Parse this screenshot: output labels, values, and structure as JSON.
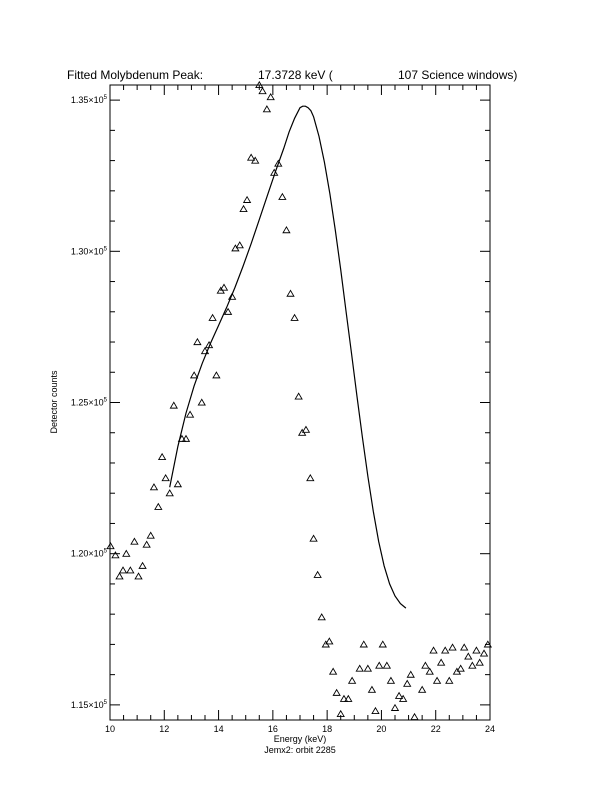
{
  "chart_data": {
    "type": "scatter",
    "title_parts": [
      "Fitted Molybdenum Peak:",
      "17.3728 keV (",
      "107 Science windows)"
    ],
    "xlabel": "Energy (keV)",
    "subtitle": "Jemx2: orbit 2285",
    "ylabel": "Detector counts",
    "xlim": [
      10,
      24
    ],
    "ylim": [
      114500,
      135500
    ],
    "x_ticks": [
      10,
      12,
      14,
      16,
      18,
      20,
      22,
      24
    ],
    "x_tick_labels": [
      "10",
      "12",
      "14",
      "16",
      "18",
      "20",
      "22",
      "24"
    ],
    "y_ticks": [
      115000,
      120000,
      125000,
      130000,
      135000
    ],
    "y_tick_labels": [
      {
        "mantissa": "1.15×10",
        "exp": "5"
      },
      {
        "mantissa": "1.20×10",
        "exp": "5"
      },
      {
        "mantissa": "1.25×10",
        "exp": "5"
      },
      {
        "mantissa": "1.30×10",
        "exp": "5"
      },
      {
        "mantissa": "1.35×10",
        "exp": "5"
      }
    ],
    "grid": false,
    "series": [
      {
        "marker": "triangle",
        "x": [
          10.02,
          10.2,
          10.35,
          10.48,
          10.6,
          10.75,
          10.9,
          11.05,
          11.2,
          11.35,
          11.5,
          11.62,
          11.78,
          11.92,
          12.05,
          12.2,
          12.35,
          12.5,
          12.65,
          12.8,
          12.95,
          13.1,
          13.22,
          13.38,
          13.5,
          13.65,
          13.78,
          13.92,
          14.08,
          14.2,
          14.35,
          14.5,
          14.62,
          14.78,
          14.92,
          15.05,
          15.2,
          15.35,
          15.5,
          15.62,
          15.78,
          15.92,
          16.05,
          16.2,
          16.35,
          16.5,
          16.65,
          16.8,
          16.95,
          17.08,
          17.22,
          17.38,
          17.5,
          17.65,
          17.8,
          17.95,
          18.08,
          18.22,
          18.35,
          18.5,
          18.62,
          18.78,
          18.92,
          19.05,
          19.2,
          19.35,
          19.5,
          19.65,
          19.78,
          19.92,
          20.05,
          20.2,
          20.35,
          20.5,
          20.65,
          20.8,
          20.95,
          21.08,
          21.22,
          21.35,
          21.5,
          21.62,
          21.78,
          21.92,
          22.05,
          22.2,
          22.35,
          22.5,
          22.62,
          22.78,
          22.92,
          23.05,
          23.2,
          23.35,
          23.5,
          23.62,
          23.78,
          23.92
        ],
        "y": [
          120250,
          119950,
          119250,
          119450,
          120000,
          119450,
          120400,
          119250,
          119600,
          120300,
          120600,
          122200,
          121550,
          123200,
          122500,
          122000,
          124900,
          122300,
          123800,
          123800,
          124600,
          125900,
          127000,
          125000,
          126700,
          126900,
          127800,
          125900,
          128700,
          128800,
          128000,
          128500,
          130100,
          130200,
          131400,
          131700,
          133100,
          133000,
          135500,
          135300,
          134700,
          135100,
          132600,
          132900,
          131800,
          130700,
          128600,
          127800,
          125200,
          124000,
          124100,
          122500,
          120500,
          119300,
          117900,
          117000,
          117100,
          116100,
          115400,
          114700,
          115200,
          115200,
          115800,
          114400,
          116200,
          117000,
          116200,
          115500,
          114800,
          116300,
          117000,
          116300,
          115800,
          114900,
          115300,
          115200,
          115700,
          116000,
          114600,
          114300,
          115500,
          116300,
          116100,
          116800,
          115800,
          116400,
          116800,
          115800,
          116900,
          116100,
          116200,
          116900,
          116600,
          116300,
          116800,
          116400,
          116700,
          117000
        ]
      },
      {
        "style": "line",
        "x": [
          12.2,
          12.5,
          12.8,
          13.1,
          13.4,
          13.7,
          14.0,
          14.3,
          14.6,
          14.9,
          15.2,
          15.5,
          15.8,
          16.1,
          16.4,
          16.6,
          16.8,
          17.0,
          17.1,
          17.2,
          17.3,
          17.4,
          17.5,
          17.7,
          17.9,
          18.1,
          18.3,
          18.5,
          18.7,
          18.9,
          19.1,
          19.3,
          19.5,
          19.7,
          19.9,
          20.1,
          20.3,
          20.5,
          20.7,
          20.9
        ],
        "y": [
          122200,
          123550,
          124650,
          125550,
          126300,
          126950,
          127550,
          128150,
          128800,
          129500,
          130250,
          131050,
          131850,
          132650,
          133400,
          133950,
          134400,
          134750,
          134800,
          134800,
          134750,
          134650,
          134450,
          133800,
          132950,
          131900,
          130700,
          129400,
          128000,
          126600,
          125200,
          123850,
          122550,
          121400,
          120400,
          119600,
          119000,
          118600,
          118350,
          118200
        ]
      }
    ]
  }
}
